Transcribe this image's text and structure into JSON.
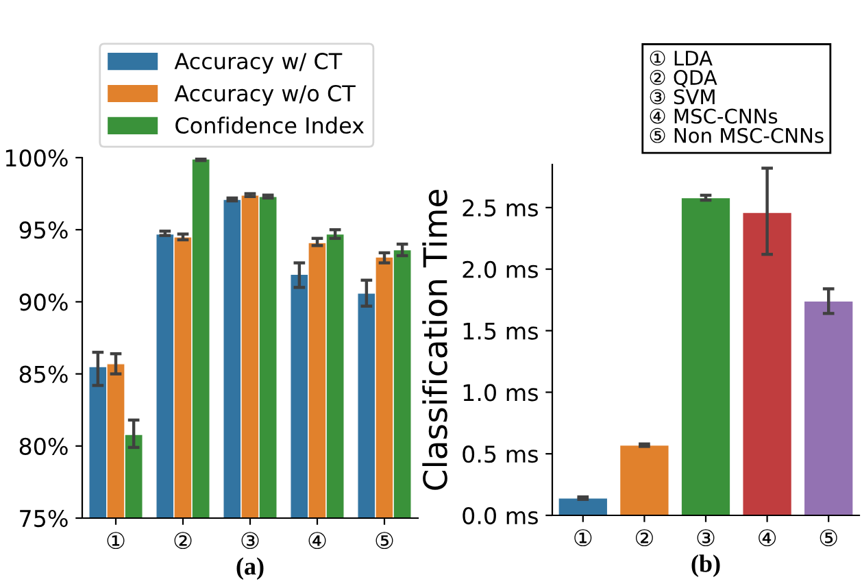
{
  "chart_data": [
    {
      "type": "bar",
      "xlabel": "(a)",
      "categories": [
        "①",
        "②",
        "③",
        "④",
        "⑤"
      ],
      "ylim": [
        75,
        100
      ],
      "yticks": [
        {
          "value": 75,
          "label": "75%"
        },
        {
          "value": 80,
          "label": "80%"
        },
        {
          "value": 85,
          "label": "85%"
        },
        {
          "value": 90,
          "label": "90%"
        },
        {
          "value": 95,
          "label": "95%"
        },
        {
          "value": 100,
          "label": "100%"
        }
      ],
      "legend": "top left",
      "grid": false,
      "series": [
        {
          "name": "Accuracy w/ CT",
          "color": "#3274a1",
          "values": [
            85.5,
            94.7,
            97.1,
            91.9,
            90.6
          ],
          "errors": [
            [
              84.2,
              86.5
            ],
            [
              94.6,
              94.9
            ],
            [
              97.0,
              97.2
            ],
            [
              91.0,
              92.7
            ],
            [
              89.7,
              91.5
            ]
          ]
        },
        {
          "name": "Accuracy w/o CT",
          "color": "#e1812c",
          "values": [
            85.7,
            94.5,
            97.4,
            94.1,
            93.1
          ],
          "errors": [
            [
              85.0,
              86.4
            ],
            [
              94.3,
              94.7
            ],
            [
              97.3,
              97.5
            ],
            [
              93.9,
              94.4
            ],
            [
              92.7,
              93.4
            ]
          ]
        },
        {
          "name": "Confidence Index",
          "color": "#3a923a",
          "values": [
            80.8,
            99.9,
            97.3,
            94.7,
            93.6
          ],
          "errors": [
            [
              79.9,
              81.8
            ],
            [
              99.8,
              100.0
            ],
            [
              97.2,
              97.4
            ],
            [
              94.4,
              95.0
            ],
            [
              93.2,
              94.0
            ]
          ]
        }
      ]
    },
    {
      "type": "bar",
      "xlabel": "(b)",
      "ylabel": "Classification Time",
      "categories": [
        "①",
        "②",
        "③",
        "④",
        "⑤"
      ],
      "ylim": [
        0,
        2.85
      ],
      "yticks": [
        {
          "value": 0,
          "label": "0.0 ms"
        },
        {
          "value": 0.5,
          "label": "0.5 ms"
        },
        {
          "value": 1.0,
          "label": "1.0 ms"
        },
        {
          "value": 1.5,
          "label": "1.5 ms"
        },
        {
          "value": 2.0,
          "label": "2.0 ms"
        },
        {
          "value": 2.5,
          "label": "2.5 ms"
        }
      ],
      "grid": false,
      "values": [
        0.14,
        0.57,
        2.58,
        2.46,
        1.74
      ],
      "colors": [
        "#3274a1",
        "#e1812c",
        "#3a923a",
        "#c03d3e",
        "#9372b2"
      ],
      "errors": [
        [
          0.13,
          0.15
        ],
        [
          0.56,
          0.58
        ],
        [
          2.56,
          2.6
        ],
        [
          2.12,
          2.82
        ],
        [
          1.64,
          1.84
        ]
      ],
      "annotations": [
        "① LDA\n② QDA\n③ SVM\n④ MSC-CNNs\n⑤ Non MSC-CNNs"
      ]
    }
  ]
}
